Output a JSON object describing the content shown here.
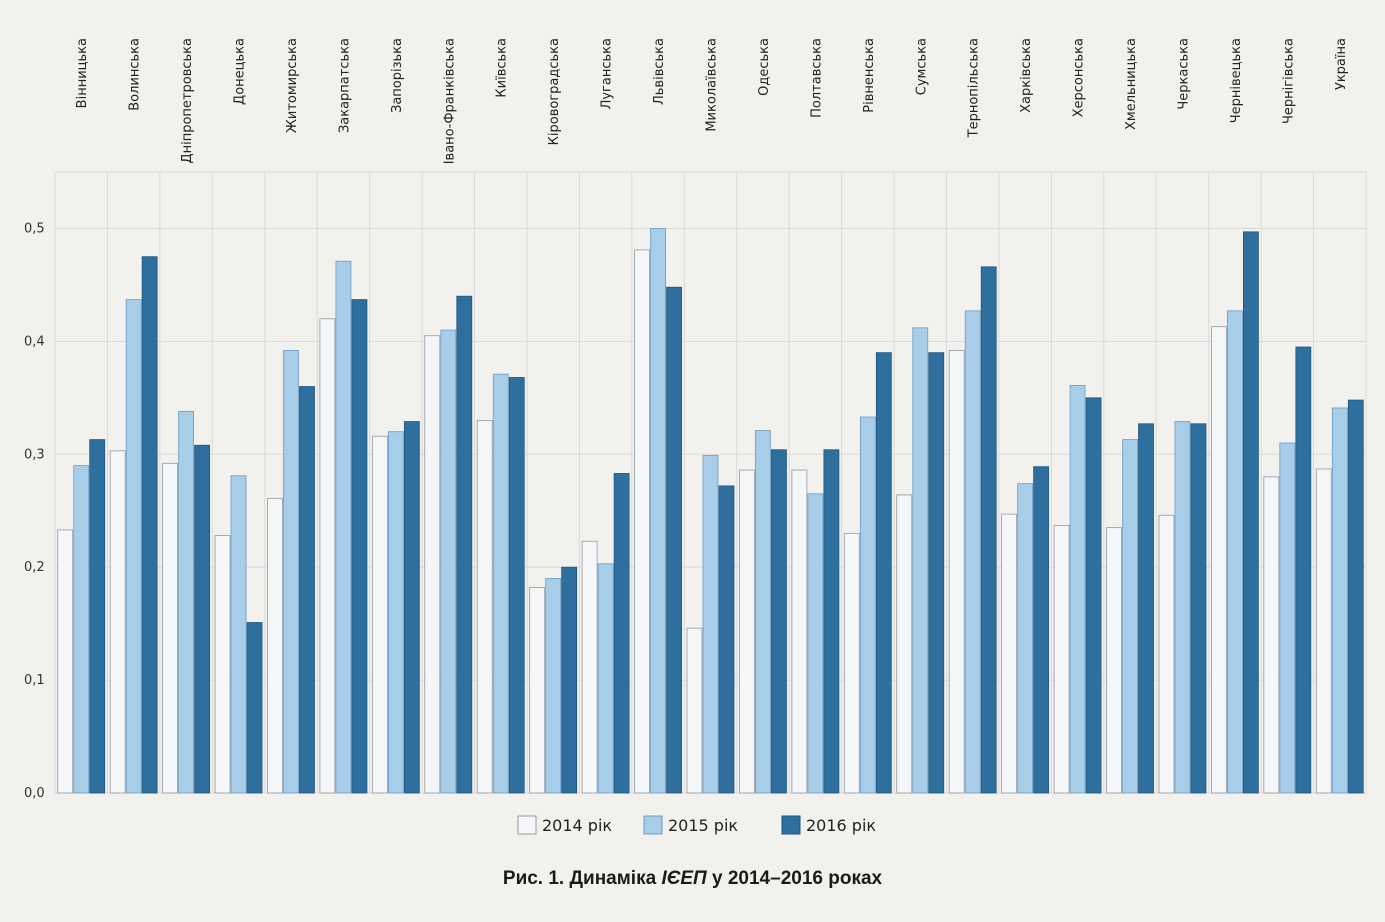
{
  "caption": {
    "prefix": "Рис. 1. Динаміка ",
    "italic": "ІЄЕП",
    "suffix": " у 2014–2016 роках"
  },
  "colors": {
    "s2014": "#f4f6f8",
    "s2015": "#a8cde9",
    "s2016": "#2e6f9e",
    "stroke": "#8e9aa4",
    "grid": "#d9d9d9",
    "text": "#333333"
  },
  "chart_data": {
    "type": "bar",
    "title": "",
    "xlabel": "",
    "ylabel": "",
    "ylim": [
      0,
      0.55
    ],
    "yticks": [
      "0,0",
      "0,1",
      "0,2",
      "0,3",
      "0,4",
      "0,5"
    ],
    "legend_position": "bottom",
    "categories": [
      "Вінницька",
      "Волинська",
      "Дніпропетровська",
      "Донецька",
      "Житомирська",
      "Закарпатська",
      "Запорізька",
      "Івано-Франківська",
      "Київська",
      "Кіровоградська",
      "Луганська",
      "Львівська",
      "Миколаївська",
      "Одеська",
      "Полтавська",
      "Рівненська",
      "Сумська",
      "Тернопільська",
      "Харківська",
      "Херсонська",
      "Хмельницька",
      "Черкаська",
      "Чернівецька",
      "Чернігівська",
      "Україна"
    ],
    "series": [
      {
        "name": "2014 рік",
        "values": [
          0.233,
          0.303,
          0.292,
          0.228,
          0.261,
          0.42,
          0.316,
          0.405,
          0.33,
          0.182,
          0.223,
          0.481,
          0.146,
          0.286,
          0.286,
          0.23,
          0.264,
          0.392,
          0.247,
          0.237,
          0.235,
          0.246,
          0.413,
          0.28,
          0.287
        ]
      },
      {
        "name": "2015 рік",
        "values": [
          0.29,
          0.437,
          0.338,
          0.281,
          0.392,
          0.471,
          0.32,
          0.41,
          0.371,
          0.19,
          0.203,
          0.5,
          0.299,
          0.321,
          0.265,
          0.333,
          0.412,
          0.427,
          0.274,
          0.361,
          0.313,
          0.329,
          0.427,
          0.31,
          0.341
        ]
      },
      {
        "name": "2016 рік",
        "values": [
          0.313,
          0.475,
          0.308,
          0.151,
          0.36,
          0.437,
          0.329,
          0.44,
          0.368,
          0.2,
          0.283,
          0.448,
          0.272,
          0.304,
          0.304,
          0.39,
          0.39,
          0.466,
          0.289,
          0.35,
          0.327,
          0.327,
          0.497,
          0.395,
          0.348
        ]
      }
    ]
  }
}
